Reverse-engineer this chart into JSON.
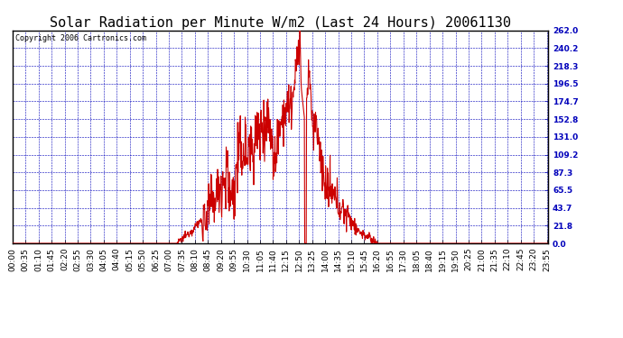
{
  "title": "Solar Radiation per Minute W/m2 (Last 24 Hours) 20061130",
  "copyright": "Copyright 2006 Cartronics.com",
  "background_color": "#FFFFFF",
  "plot_bg_color": "#FFFFFF",
  "line_color": "#CC0000",
  "grid_color": "#0000BB",
  "axis_color": "#000000",
  "text_color": "#000000",
  "title_color": "#000000",
  "yticks": [
    0.0,
    21.8,
    43.7,
    65.5,
    87.3,
    109.2,
    131.0,
    152.8,
    174.7,
    196.5,
    218.3,
    240.2,
    262.0
  ],
  "ymax": 262.0,
  "ymin": 0.0,
  "xtick_labels": [
    "00:00",
    "00:35",
    "01:10",
    "01:45",
    "02:20",
    "02:55",
    "03:30",
    "04:05",
    "04:40",
    "05:15",
    "05:50",
    "06:25",
    "07:00",
    "07:35",
    "08:10",
    "08:45",
    "09:20",
    "09:55",
    "10:30",
    "11:05",
    "11:40",
    "12:15",
    "12:50",
    "13:25",
    "14:00",
    "14:35",
    "15:10",
    "15:45",
    "16:20",
    "16:55",
    "17:30",
    "18:05",
    "18:40",
    "19:15",
    "19:50",
    "20:25",
    "21:00",
    "21:35",
    "22:10",
    "22:45",
    "23:20",
    "23:55"
  ],
  "title_fontsize": 11,
  "copyright_fontsize": 6,
  "tick_fontsize": 6.5
}
